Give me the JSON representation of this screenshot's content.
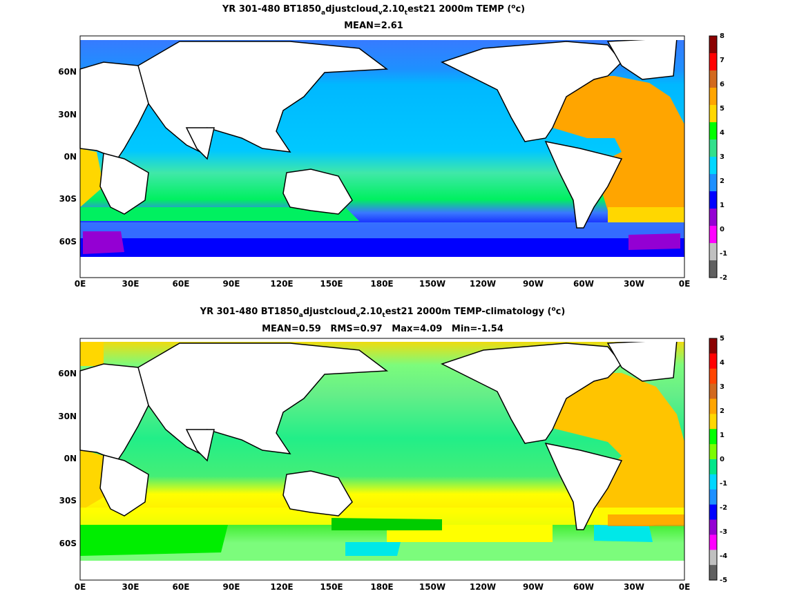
{
  "panels": [
    {
      "title_main": "YR 301-480 BT1850",
      "title_sub1": "a",
      "title_mid1": "djustcloud",
      "title_sub2": "v",
      "title_mid2": "2.10",
      "title_sub3": "t",
      "title_end": "est21 2000m TEMP (",
      "title_sup": "o",
      "title_close": "c)",
      "stats": "MEAN=2.61",
      "colorbar_ticks": [
        "8",
        "7",
        "6",
        "5",
        "4",
        "3",
        "2",
        "1",
        "0",
        "-1",
        "-2"
      ],
      "colorbar_colors": [
        "#8b0000",
        "#ff0000",
        "#d2691e",
        "#ffa500",
        "#ffd700",
        "#00ff00",
        "#32e08c",
        "#00d7ff",
        "#1e90ff",
        "#0000ff",
        "#9400d3",
        "#ff00ff",
        "#c0c0c0",
        "#606060"
      ],
      "field": "background water temperature at 2000m"
    },
    {
      "title_main": "YR 301-480 BT1850",
      "title_sub1": "a",
      "title_mid1": "djustcloud",
      "title_sub2": "v",
      "title_mid2": "2.10",
      "title_sub3": "t",
      "title_end": "est21 2000m TEMP-climatology (",
      "title_sup": "o",
      "title_close": "c)",
      "stats": "MEAN=0.59   RMS=0.97   Max=4.09   Min=-1.54",
      "colorbar_ticks": [
        "5",
        "4",
        "3",
        "2",
        "1",
        "0",
        "-1",
        "-2",
        "-3",
        "-4",
        "-5"
      ],
      "colorbar_colors": [
        "#8b0000",
        "#ff0000",
        "#ff4500",
        "#d2691e",
        "#ffa500",
        "#ffd700",
        "#00ff00",
        "#7cfc00",
        "#00e68a",
        "#00d7ff",
        "#1e90ff",
        "#0000ff",
        "#9400d3",
        "#ff00ff",
        "#c0c0c0",
        "#606060"
      ],
      "field": "anomaly"
    }
  ],
  "axes": {
    "lon_labels": [
      "0E",
      "30E",
      "60E",
      "90E",
      "120E",
      "150E",
      "180E",
      "150W",
      "120W",
      "90W",
      "60W",
      "30W",
      "0E"
    ],
    "lat_labels": [
      "60N",
      "30N",
      "0N",
      "30S",
      "60S"
    ]
  }
}
